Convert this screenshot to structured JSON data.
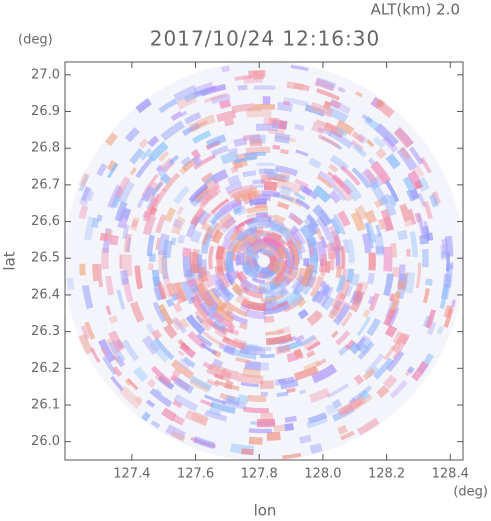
{
  "chart_data": {
    "type": "image",
    "title": "2017/10/24 12:16:30",
    "subtitle": "ALT(km) 2.0",
    "x_label": "lon",
    "y_label": "lat",
    "x_unit": "(deg)",
    "y_unit": "(deg)",
    "xlim": [
      127.19,
      128.44
    ],
    "ylim": [
      25.95,
      27.035
    ],
    "xticks": [
      127.4,
      127.6,
      127.8,
      {
        "value": 128.0,
        "label": "128.0"
      },
      128.2,
      128.4
    ],
    "yticks": [
      {
        "value": 26.0,
        "label": "26.0"
      },
      26.1,
      26.2,
      26.3,
      26.4,
      26.5,
      26.6,
      26.7,
      26.8,
      26.9,
      {
        "value": 27.0,
        "label": "27.0"
      }
    ]
  }
}
